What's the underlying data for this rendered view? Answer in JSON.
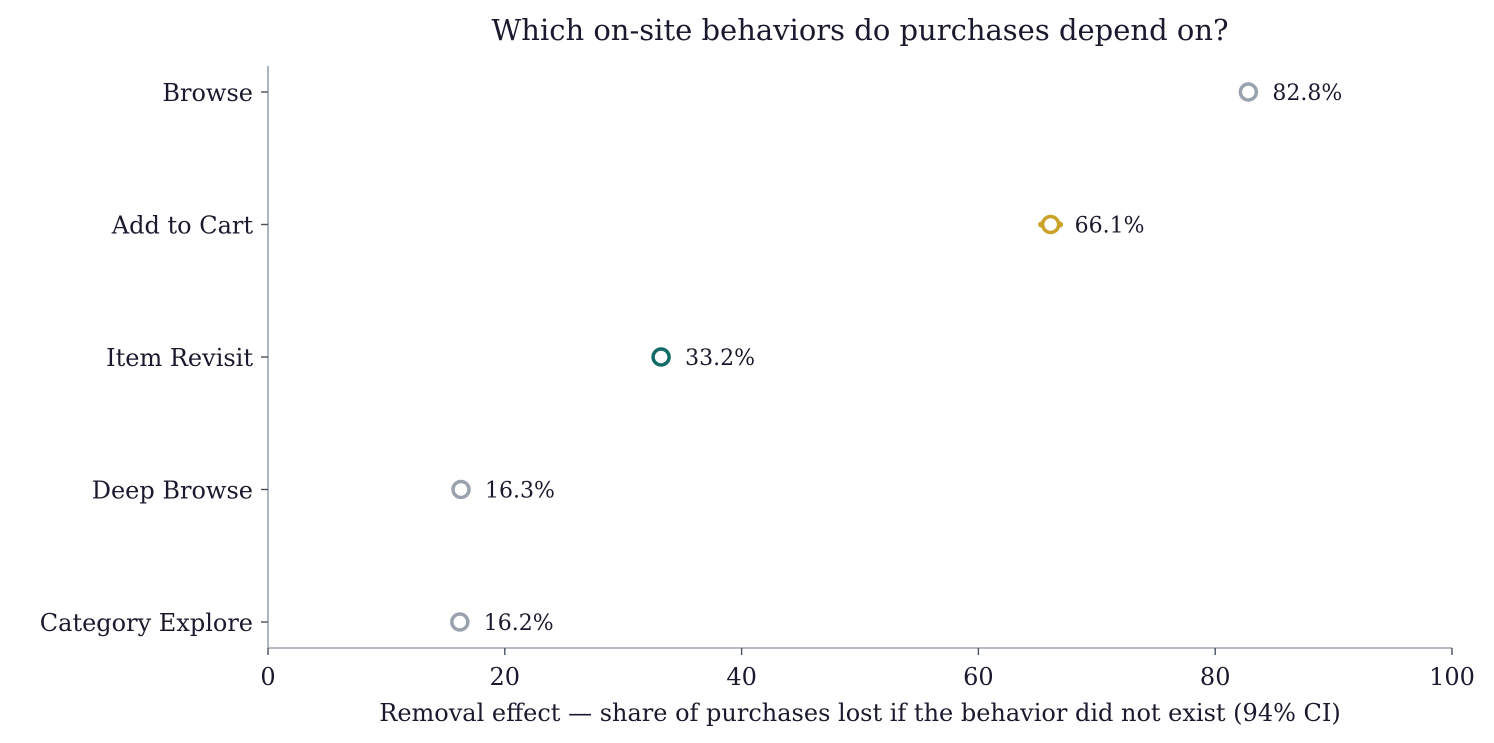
{
  "chart_data": {
    "type": "scatter",
    "title": "Which on-site behaviors do purchases depend on?",
    "xlabel": "Removal effect — share of purchases lost if the behavior did not exist (94% CI)",
    "ylabel": "",
    "xlim": [
      0,
      100
    ],
    "xticks": [
      "0",
      "20",
      "40",
      "60",
      "80",
      "100"
    ],
    "categories": [
      "Browse",
      "Add to Cart",
      "Item Revisit",
      "Deep Browse",
      "Category Explore"
    ],
    "values": [
      82.8,
      66.1,
      33.2,
      16.3,
      16.2
    ],
    "ci": [
      [
        82.6,
        83.0
      ],
      [
        65.3,
        66.9
      ],
      [
        32.8,
        33.6
      ],
      [
        16.1,
        16.5
      ],
      [
        16.0,
        16.4
      ]
    ],
    "value_labels": [
      "82.8%",
      "66.1%",
      "33.2%",
      "16.3%",
      "16.2%"
    ],
    "colors": [
      "#9aa3ad",
      "#c9a227",
      "#136b68",
      "#9aa3ad",
      "#9aa3ad"
    ],
    "grid": false,
    "legend": "none"
  }
}
